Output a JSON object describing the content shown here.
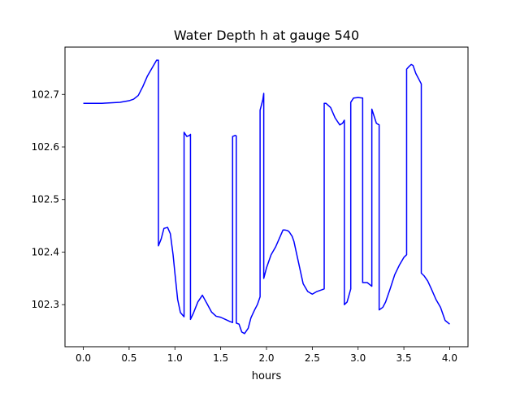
{
  "chart_data": {
    "type": "line",
    "title": "Water Depth h at gauge 540",
    "xlabel": "hours",
    "ylabel": "",
    "xlim": [
      -0.2,
      4.2
    ],
    "ylim": [
      102.22,
      102.79
    ],
    "xticks": [
      0.0,
      0.5,
      1.0,
      1.5,
      2.0,
      2.5,
      3.0,
      3.5,
      4.0
    ],
    "xtick_labels": [
      "0.0",
      "0.5",
      "1.0",
      "1.5",
      "2.0",
      "2.5",
      "3.0",
      "3.5",
      "4.0"
    ],
    "yticks": [
      102.3,
      102.4,
      102.5,
      102.6,
      102.7
    ],
    "ytick_labels": [
      "102.3",
      "102.4",
      "102.5",
      "102.6",
      "102.7"
    ],
    "grid": false,
    "series": [
      {
        "color": "#0000ff",
        "x": [
          0.0,
          0.1,
          0.2,
          0.3,
          0.4,
          0.5,
          0.55,
          0.6,
          0.65,
          0.7,
          0.75,
          0.8,
          0.82,
          0.82,
          0.85,
          0.88,
          0.92,
          0.95,
          0.98,
          1.0,
          1.03,
          1.06,
          1.1,
          1.1,
          1.13,
          1.16,
          1.17,
          1.17,
          1.2,
          1.25,
          1.3,
          1.35,
          1.4,
          1.45,
          1.5,
          1.55,
          1.6,
          1.63,
          1.63,
          1.66,
          1.67,
          1.67,
          1.7,
          1.73,
          1.76,
          1.8,
          1.83,
          1.87,
          1.9,
          1.93,
          1.93,
          1.96,
          1.97,
          1.97,
          2.0,
          2.05,
          2.1,
          2.15,
          2.18,
          2.2,
          2.23,
          2.25,
          2.28,
          2.3,
          2.35,
          2.4,
          2.45,
          2.5,
          2.55,
          2.6,
          2.63,
          2.63,
          2.65,
          2.7,
          2.75,
          2.8,
          2.83,
          2.85,
          2.85,
          2.88,
          2.92,
          2.92,
          2.95,
          3.0,
          3.05,
          3.05,
          3.1,
          3.15,
          3.15,
          3.2,
          3.23,
          3.23,
          3.27,
          3.3,
          3.35,
          3.4,
          3.45,
          3.5,
          3.53,
          3.53,
          3.55,
          3.58,
          3.6,
          3.63,
          3.66,
          3.69,
          3.69,
          3.72,
          3.76,
          3.8,
          3.85,
          3.9,
          3.95,
          4.0
        ],
        "y": [
          102.683,
          102.683,
          102.683,
          102.684,
          102.685,
          102.688,
          102.691,
          102.698,
          102.715,
          102.735,
          102.75,
          102.765,
          102.765,
          102.412,
          102.425,
          102.445,
          102.447,
          102.435,
          102.395,
          102.36,
          102.31,
          102.285,
          102.277,
          102.628,
          102.62,
          102.622,
          102.624,
          102.272,
          102.283,
          102.305,
          102.318,
          102.302,
          102.286,
          102.278,
          102.276,
          102.272,
          102.268,
          102.266,
          102.62,
          102.622,
          102.621,
          102.265,
          102.263,
          102.248,
          102.245,
          102.255,
          102.275,
          102.29,
          102.3,
          102.315,
          102.67,
          102.69,
          102.702,
          102.35,
          102.37,
          102.395,
          102.41,
          102.43,
          102.442,
          102.442,
          102.441,
          102.438,
          102.43,
          102.42,
          102.38,
          102.34,
          102.325,
          102.32,
          102.325,
          102.328,
          102.33,
          102.683,
          102.683,
          102.675,
          102.655,
          102.642,
          102.645,
          102.651,
          102.3,
          102.305,
          102.33,
          102.685,
          102.693,
          102.694,
          102.693,
          102.342,
          102.342,
          102.335,
          102.672,
          102.645,
          102.642,
          102.29,
          102.295,
          102.305,
          102.33,
          102.357,
          102.375,
          102.39,
          102.395,
          102.748,
          102.752,
          102.757,
          102.755,
          102.74,
          102.73,
          102.72,
          102.36,
          102.355,
          102.345,
          102.33,
          102.31,
          102.295,
          102.27,
          102.263
        ]
      }
    ]
  }
}
